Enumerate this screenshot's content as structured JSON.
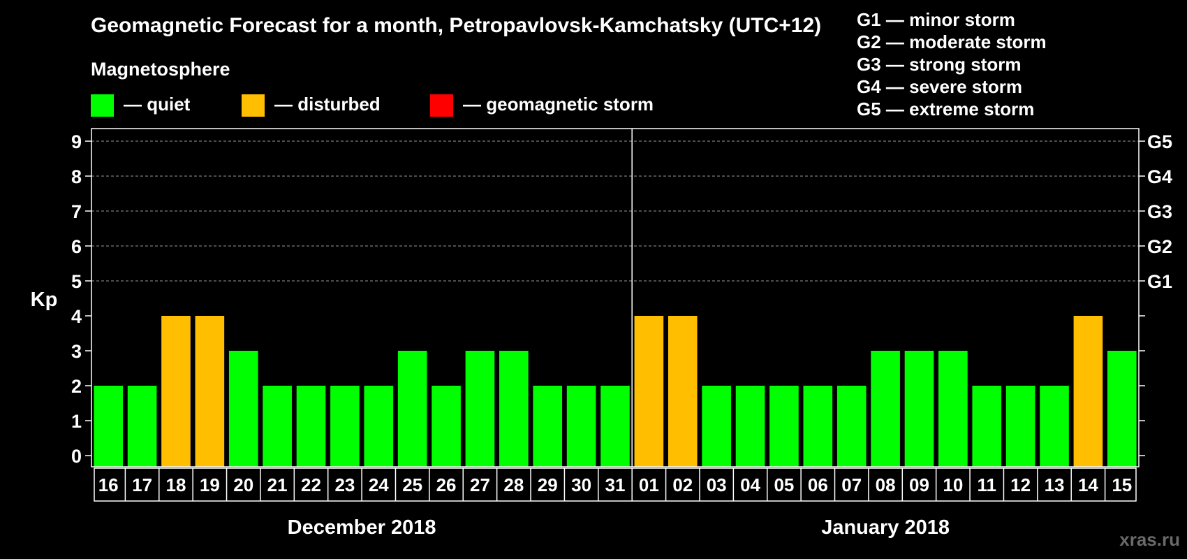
{
  "title": "Geomagnetic Forecast for a month, Petropavlovsk-Kamchatsky (UTC+12)",
  "legend": {
    "heading": "Magnetosphere",
    "items": [
      {
        "label": "— quiet",
        "color": "#00ff00"
      },
      {
        "label": "— disturbed",
        "color": "#ffbf00"
      },
      {
        "label": "— geomagnetic storm",
        "color": "#ff0000"
      }
    ]
  },
  "g_scale": [
    "G1 — minor storm",
    "G2 — moderate storm",
    "G3 — strong storm",
    "G4 — severe storm",
    "G5 — extreme storm"
  ],
  "watermark": "xras.ru",
  "chart_data": {
    "type": "bar",
    "title": "Geomagnetic Forecast for a month, Petropavlovsk-Kamchatsky (UTC+12)",
    "ylabel": "Kp",
    "ylim": [
      0,
      9
    ],
    "yticks": [
      0,
      1,
      2,
      3,
      4,
      5,
      6,
      7,
      8,
      9
    ],
    "right_axis_labels": [
      {
        "kp": 5,
        "label": "G1"
      },
      {
        "kp": 6,
        "label": "G2"
      },
      {
        "kp": 7,
        "label": "G3"
      },
      {
        "kp": 8,
        "label": "G4"
      },
      {
        "kp": 9,
        "label": "G5"
      }
    ],
    "categories": [
      "16",
      "17",
      "18",
      "19",
      "20",
      "21",
      "22",
      "23",
      "24",
      "25",
      "26",
      "27",
      "28",
      "29",
      "30",
      "31",
      "01",
      "02",
      "03",
      "04",
      "05",
      "06",
      "07",
      "08",
      "09",
      "10",
      "11",
      "12",
      "13",
      "14",
      "15"
    ],
    "values": [
      2,
      2,
      4,
      4,
      3,
      2,
      2,
      2,
      2,
      3,
      2,
      3,
      3,
      2,
      2,
      2,
      4,
      4,
      2,
      2,
      2,
      2,
      2,
      3,
      3,
      3,
      2,
      2,
      2,
      4,
      3
    ],
    "status": [
      "quiet",
      "quiet",
      "disturbed",
      "disturbed",
      "quiet",
      "quiet",
      "quiet",
      "quiet",
      "quiet",
      "quiet",
      "quiet",
      "quiet",
      "quiet",
      "quiet",
      "quiet",
      "quiet",
      "disturbed",
      "disturbed",
      "quiet",
      "quiet",
      "quiet",
      "quiet",
      "quiet",
      "quiet",
      "quiet",
      "quiet",
      "quiet",
      "quiet",
      "quiet",
      "disturbed",
      "quiet"
    ],
    "status_colors": {
      "quiet": "#00ff00",
      "disturbed": "#ffbf00",
      "storm": "#ff0000"
    },
    "months": [
      {
        "label": "December 2018",
        "days": 16
      },
      {
        "label": "January 2018",
        "days": 15
      }
    ],
    "grid": "dashed horizontal"
  }
}
